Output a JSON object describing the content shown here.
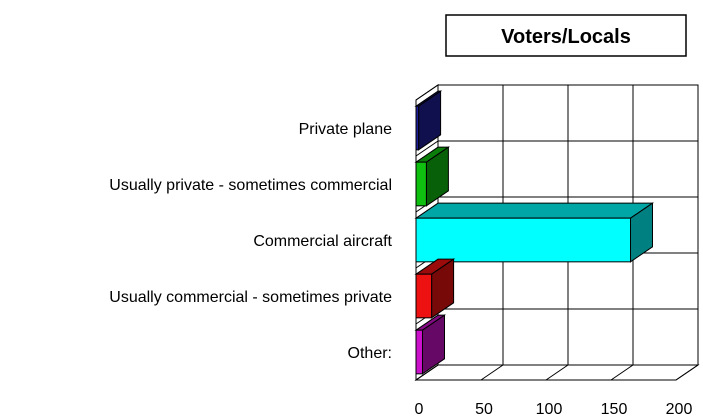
{
  "chart_data": {
    "type": "bar",
    "orientation": "horizontal",
    "title": "Voters/Locals",
    "categories": [
      "Private plane",
      "Usually private - sometimes commercial",
      "Commercial aircraft",
      "Usually commercial - sometimes private",
      "Other:"
    ],
    "values": [
      2,
      8,
      165,
      12,
      5
    ],
    "colors": [
      "#1f1f9e",
      "#10c010",
      "#00ffff",
      "#ee1111",
      "#cc11cc"
    ],
    "xlim": [
      0,
      200
    ],
    "xticks": [
      "0",
      "50",
      "100",
      "150",
      "200"
    ],
    "grid": true,
    "legend": "none",
    "style": "3d"
  }
}
